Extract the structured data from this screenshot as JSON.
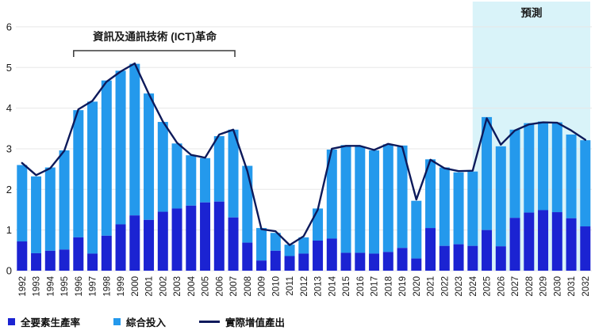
{
  "colors": {
    "tfp_bar": "#1B23D2",
    "inputs_bar": "#2499EC",
    "output_line": "#0D1A5B",
    "forecast_band": "#D9F3F9",
    "grid": "#E7E7E7",
    "axis_text": "#1A1A1A"
  },
  "legend": {
    "items": [
      {
        "label": "全要素生產率",
        "swatch": "tfp_bar",
        "kind": "square"
      },
      {
        "label": "綜合投入",
        "swatch": "inputs_bar",
        "kind": "square"
      },
      {
        "label": "實際增值產出",
        "swatch": "output_line",
        "kind": "line"
      }
    ]
  },
  "chart_data": {
    "type": "bar",
    "subtype": "stacked-bars-with-line-overlay",
    "title": "",
    "xlabel": "",
    "ylabel": "",
    "ylim": [
      0,
      6
    ],
    "yticks": [
      0,
      1,
      2,
      3,
      4,
      5,
      6
    ],
    "grid": true,
    "legend_position": "bottom-left",
    "categories": [
      1992,
      1993,
      1994,
      1995,
      1996,
      1997,
      1998,
      1999,
      2000,
      2001,
      2002,
      2003,
      2004,
      2005,
      2006,
      2007,
      2008,
      2009,
      2010,
      2011,
      2012,
      2013,
      2014,
      2015,
      2016,
      2017,
      2018,
      2019,
      2020,
      2021,
      2022,
      2023,
      2024,
      2025,
      2026,
      2027,
      2028,
      2029,
      2030,
      2031,
      2032
    ],
    "series": [
      {
        "name": "全要素生產率",
        "role": "bar-stack-bottom",
        "values": [
          0.72,
          0.43,
          0.49,
          0.52,
          0.82,
          0.42,
          0.86,
          1.14,
          1.36,
          1.25,
          1.45,
          1.53,
          1.6,
          1.68,
          1.7,
          1.31,
          0.69,
          0.25,
          0.49,
          0.36,
          0.42,
          0.74,
          0.79,
          0.44,
          0.44,
          0.42,
          0.46,
          0.56,
          0.3,
          1.05,
          0.61,
          0.65,
          0.61,
          1.0,
          0.6,
          1.3,
          1.43,
          1.49,
          1.44,
          1.29,
          1.09
        ]
      },
      {
        "name": "綜合投入",
        "role": "bar-stack-top",
        "values": [
          1.88,
          1.89,
          2.05,
          2.44,
          3.13,
          3.74,
          3.82,
          3.78,
          3.73,
          3.11,
          2.21,
          1.6,
          1.24,
          1.09,
          1.61,
          2.16,
          1.89,
          0.8,
          0.44,
          0.28,
          0.4,
          0.79,
          2.19,
          2.65,
          2.62,
          2.54,
          2.65,
          2.52,
          1.42,
          1.69,
          1.93,
          1.77,
          1.83,
          2.78,
          2.46,
          2.17,
          2.2,
          2.18,
          2.21,
          2.06,
          2.12
        ]
      },
      {
        "name": "實際增值產出",
        "role": "line",
        "values": [
          2.65,
          2.35,
          2.52,
          2.95,
          3.97,
          4.18,
          4.65,
          4.9,
          5.1,
          4.35,
          3.67,
          3.15,
          2.85,
          2.78,
          3.35,
          3.47,
          2.45,
          1.02,
          0.97,
          0.63,
          0.85,
          1.5,
          3.0,
          3.07,
          3.07,
          2.97,
          3.12,
          3.05,
          1.75,
          2.73,
          2.52,
          2.45,
          2.46,
          3.75,
          3.1,
          3.45,
          3.6,
          3.65,
          3.64,
          3.45,
          3.22
        ]
      }
    ],
    "annotations": {
      "ict_label": "資訊及通訊技術 (ICT)革命",
      "ict_bracket_from_year": 1996,
      "ict_bracket_to_year": 2007,
      "forecast_label": "預測",
      "forecast_from_year": 2025,
      "forecast_to_year": 2032
    }
  }
}
